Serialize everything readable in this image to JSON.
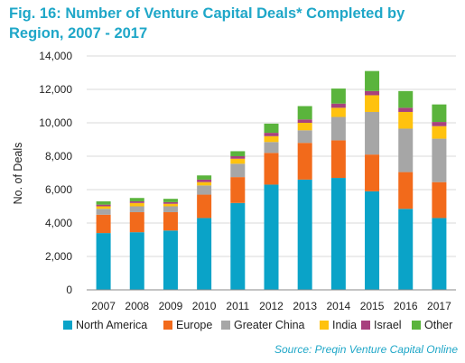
{
  "title": "Fig. 16: Number of Venture Capital Deals* Completed by Region, 2007 - 2017",
  "source": "Source: Preqin Venture Capital Online",
  "colors": {
    "North America": "#0aa3c8",
    "Europe": "#f26a1b",
    "Greater China": "#a6a6a6",
    "India": "#ffc20e",
    "Israel": "#a8417e",
    "Other": "#5ab43c"
  },
  "chart_data": {
    "type": "bar",
    "stacked": true,
    "title": "Fig. 16: Number of Venture Capital Deals* Completed by Region, 2007 - 2017",
    "xlabel": "",
    "ylabel": "No. of Deals",
    "ylim": [
      0,
      14000
    ],
    "yticks": [
      "0",
      "2,000",
      "4,000",
      "6,000",
      "8,000",
      "10,000",
      "12,000",
      "14,000"
    ],
    "categories": [
      "2007",
      "2008",
      "2009",
      "2010",
      "2011",
      "2012",
      "2013",
      "2014",
      "2015",
      "2016",
      "2017"
    ],
    "legend_position": "bottom",
    "grid": true,
    "series": [
      {
        "name": "North America",
        "values": [
          3400,
          3450,
          3550,
          4300,
          5200,
          6300,
          6600,
          6700,
          5900,
          4850,
          4300
        ]
      },
      {
        "name": "Europe",
        "values": [
          1100,
          1200,
          1100,
          1400,
          1550,
          1900,
          2200,
          2250,
          2200,
          2200,
          2150
        ]
      },
      {
        "name": "Greater China",
        "values": [
          350,
          350,
          350,
          550,
          800,
          650,
          750,
          1400,
          2550,
          2600,
          2600
        ]
      },
      {
        "name": "India",
        "values": [
          150,
          200,
          150,
          200,
          300,
          350,
          450,
          550,
          1000,
          1000,
          750
        ]
      },
      {
        "name": "Israel",
        "values": [
          100,
          100,
          100,
          150,
          150,
          200,
          200,
          250,
          250,
          250,
          250
        ]
      },
      {
        "name": "Other",
        "values": [
          200,
          200,
          200,
          250,
          300,
          550,
          800,
          900,
          1200,
          1000,
          1050
        ]
      }
    ]
  }
}
